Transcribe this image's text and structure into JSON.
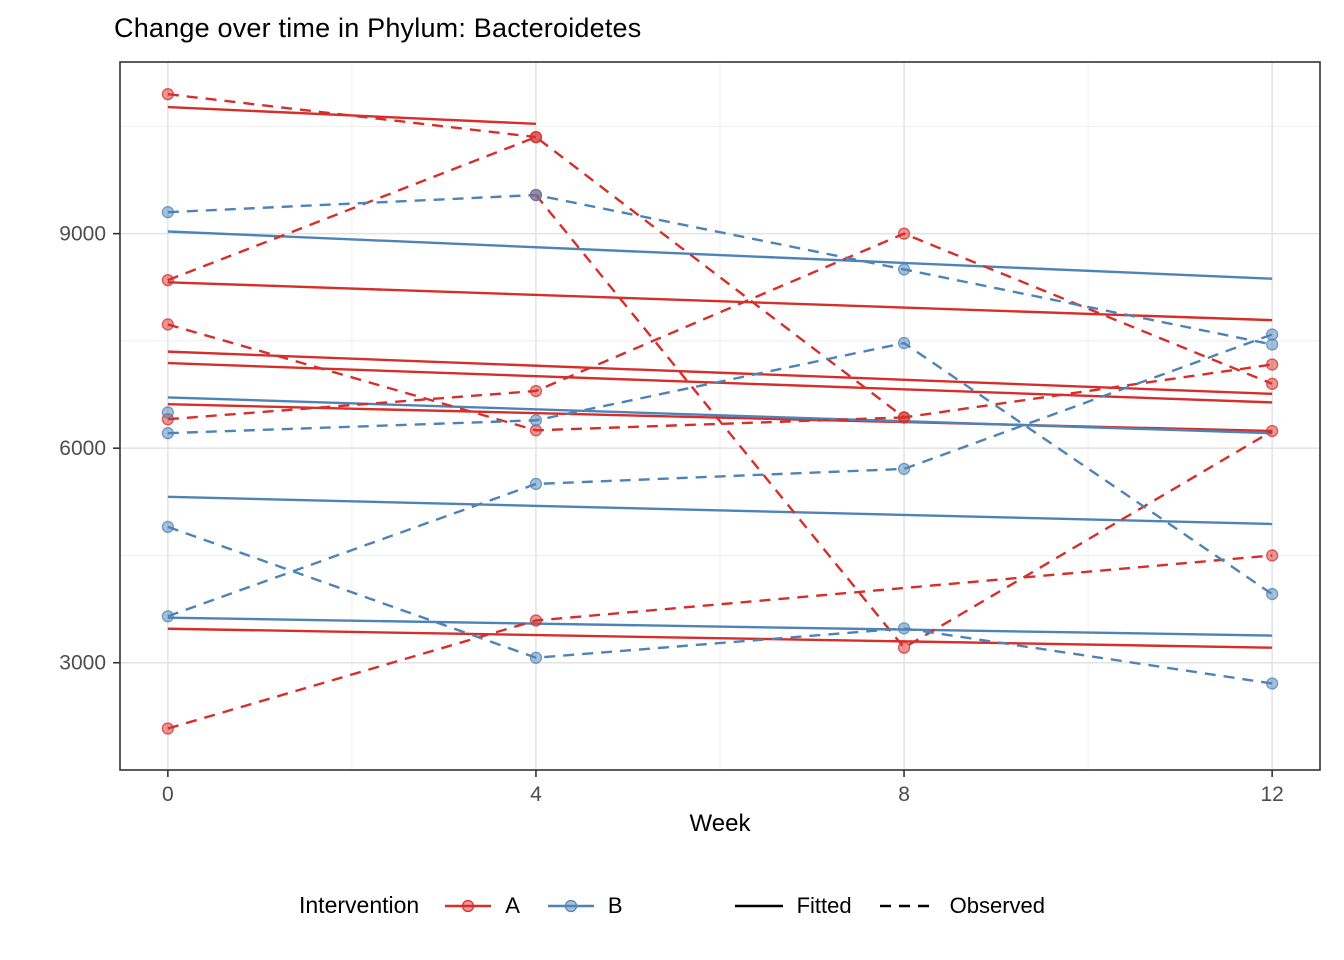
{
  "chart_data": {
    "type": "line",
    "title": "Change over time in Phylum: Bacteroidetes",
    "xlabel": "Week",
    "axes": {
      "x": {
        "ticks": [
          0,
          4,
          8,
          12
        ],
        "minor": [
          2,
          6,
          10
        ],
        "lim": [
          -0.52,
          12.52
        ]
      },
      "y": {
        "ticks": [
          3000,
          6000,
          9000
        ],
        "minor": [
          4500,
          7500,
          10500
        ],
        "lim": [
          1500,
          11400
        ]
      }
    },
    "grid": {
      "major_color": "#e3e3e3",
      "minor_color": "#f1f1f1",
      "panel_border": "#333333"
    },
    "legend": {
      "title": "Intervention",
      "groups": [
        {
          "id": "A",
          "label": "A",
          "color": "#d62f2b"
        },
        {
          "id": "B",
          "label": "B",
          "color": "#4e83b7"
        }
      ],
      "linetypes": [
        {
          "label": "Fitted",
          "style": "solid"
        },
        {
          "label": "Observed",
          "style": "dashed"
        }
      ]
    },
    "series_observed": [
      {
        "group": "A",
        "x": [
          0,
          4
        ],
        "y": [
          10950,
          10350
        ]
      },
      {
        "group": "A",
        "x": [
          0,
          4,
          8,
          12
        ],
        "y": [
          8350,
          10350,
          6430,
          7170
        ]
      },
      {
        "group": "A",
        "x": [
          0,
          4,
          8
        ],
        "y": [
          7730,
          6250,
          6430
        ]
      },
      {
        "group": "A",
        "x": [
          4,
          8,
          12
        ],
        "y": [
          9540,
          3210,
          6240
        ]
      },
      {
        "group": "A",
        "x": [
          0,
          4,
          8,
          12
        ],
        "y": [
          6405,
          6800,
          9000,
          6900
        ]
      },
      {
        "group": "A",
        "x": [
          0,
          4,
          12
        ],
        "y": [
          2080,
          3590,
          4500
        ]
      },
      {
        "group": "B",
        "x": [
          0,
          4,
          8,
          12
        ],
        "y": [
          9300,
          9540,
          8500,
          7450
        ]
      },
      {
        "group": "B",
        "x": [
          0,
          4,
          8,
          12
        ],
        "y": [
          6210,
          6390,
          7470,
          3960
        ]
      },
      {
        "group": "B",
        "x": [
          0,
          4,
          8,
          12
        ],
        "y": [
          4900,
          3070,
          3480,
          2710
        ]
      },
      {
        "group": "B",
        "x": [
          0,
          4,
          8,
          12
        ],
        "y": [
          3650,
          5500,
          5710,
          7590
        ]
      },
      {
        "group": "B",
        "x": [
          0
        ],
        "y": [
          6500
        ]
      }
    ],
    "series_fitted": [
      {
        "group": "A",
        "x": [
          0,
          4
        ],
        "y": [
          10770,
          10535
        ]
      },
      {
        "group": "A",
        "x": [
          0,
          12
        ],
        "y": [
          8320,
          7790
        ]
      },
      {
        "group": "A",
        "x": [
          0,
          12
        ],
        "y": [
          7350,
          6760
        ]
      },
      {
        "group": "A",
        "x": [
          0,
          12
        ],
        "y": [
          7190,
          6640
        ]
      },
      {
        "group": "A",
        "x": [
          0,
          12
        ],
        "y": [
          6615,
          6240
        ]
      },
      {
        "group": "A",
        "x": [
          0,
          12
        ],
        "y": [
          3475,
          3210
        ]
      },
      {
        "group": "B",
        "x": [
          0,
          12
        ],
        "y": [
          9030,
          8370
        ]
      },
      {
        "group": "B",
        "x": [
          0,
          12
        ],
        "y": [
          6710,
          6210
        ]
      },
      {
        "group": "B",
        "x": [
          0,
          12
        ],
        "y": [
          5320,
          4940
        ]
      },
      {
        "group": "B",
        "x": [
          0,
          12
        ],
        "y": [
          3630,
          3380
        ]
      }
    ]
  }
}
